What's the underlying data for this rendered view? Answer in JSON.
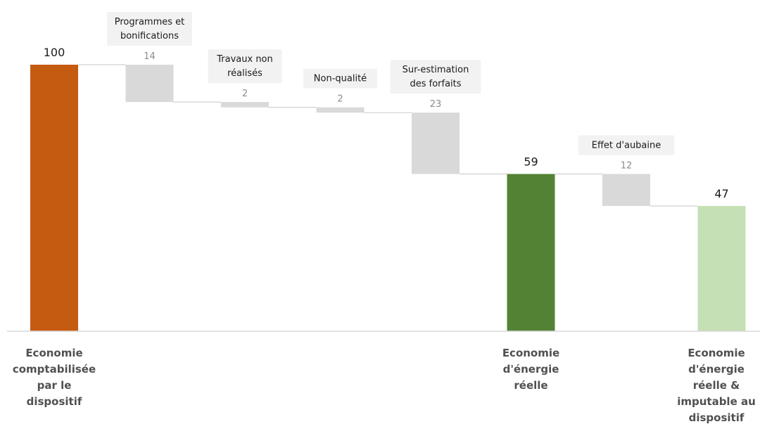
{
  "chart_data": {
    "type": "bar",
    "subtype": "waterfall",
    "title": "",
    "xlabel": "",
    "ylabel": "",
    "ylim": [
      0,
      100
    ],
    "grid": false,
    "legend": "none",
    "steps": [
      {
        "kind": "total",
        "label_lines": [
          "Economie",
          "comptabilisée",
          "par le",
          "dispositif"
        ],
        "value": 100,
        "display": "100",
        "color": "#c55a11"
      },
      {
        "kind": "decrease",
        "label_lines": [
          "Programmes et",
          "bonifications"
        ],
        "value": 14,
        "display": "14",
        "color": "#d9d9d9"
      },
      {
        "kind": "decrease",
        "label_lines": [
          "Travaux non",
          "réalisés"
        ],
        "value": 2,
        "display": "2",
        "color": "#d9d9d9"
      },
      {
        "kind": "decrease",
        "label_lines": [
          "Non-qualité"
        ],
        "value": 2,
        "display": "2",
        "color": "#d9d9d9"
      },
      {
        "kind": "decrease",
        "label_lines": [
          "Sur-estimation",
          "des forfaits"
        ],
        "value": 23,
        "display": "23",
        "color": "#d9d9d9"
      },
      {
        "kind": "total",
        "label_lines": [
          "Economie",
          "d'énergie",
          "réelle"
        ],
        "value": 59,
        "display": "59",
        "color": "#548235"
      },
      {
        "kind": "decrease",
        "label_lines": [
          "Effet d'aubaine"
        ],
        "value": 12,
        "display": "12",
        "color": "#d9d9d9"
      },
      {
        "kind": "total",
        "label_lines": [
          "Economie",
          "d'énergie",
          "réelle &",
          "imputable au",
          "dispositif"
        ],
        "value": 47,
        "display": "47",
        "color": "#c5e0b4"
      }
    ],
    "connector_color": "#d0d0d0",
    "axis_color": "#d9d9d9",
    "label_box_color": "#f2f2f2"
  }
}
